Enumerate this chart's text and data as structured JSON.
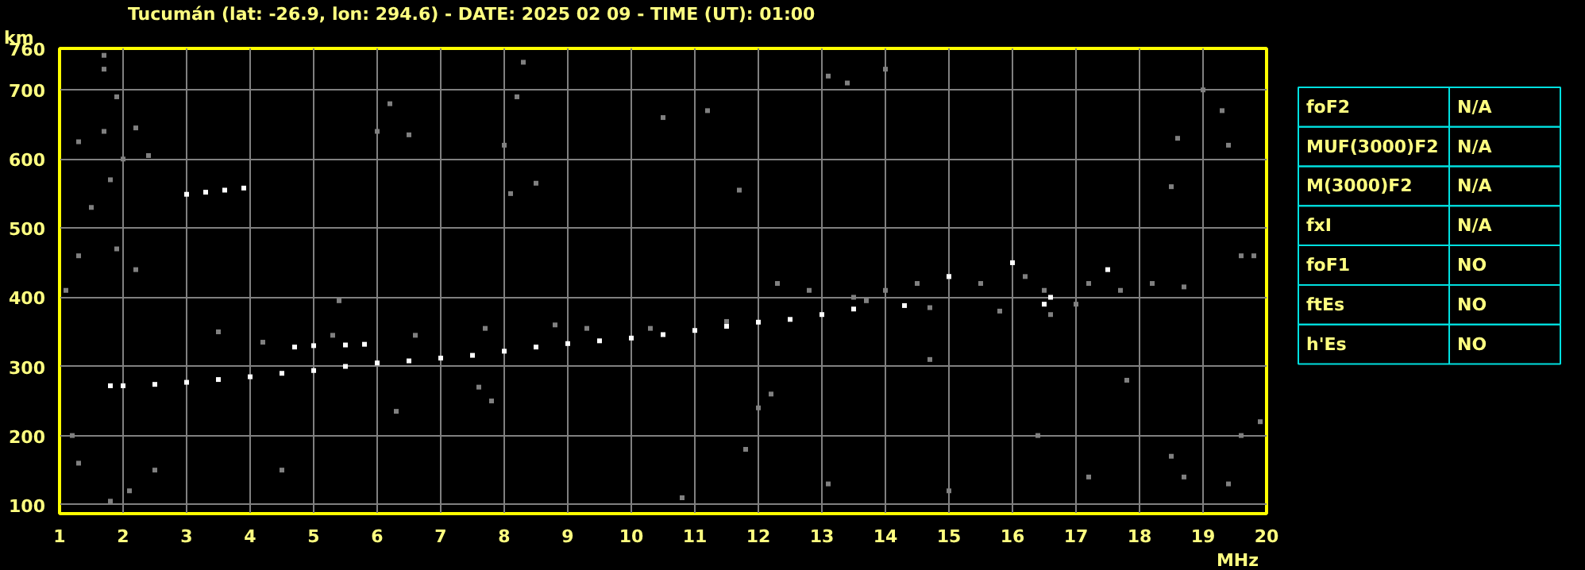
{
  "chart_data": [
    {
      "type": "scatter",
      "title": "Tucumán (lat: -26.9, lon: 294.6) - DATE: 2025 02 09 - TIME (UT): 01:00",
      "xlabel": "MHz",
      "ylabel": "km",
      "xlim": [
        1,
        20
      ],
      "ylim": [
        87,
        760
      ],
      "xticks": [
        1,
        2,
        3,
        4,
        5,
        6,
        7,
        8,
        9,
        10,
        11,
        12,
        13,
        14,
        15,
        16,
        17,
        18,
        19,
        20
      ],
      "yticks": [
        100,
        200,
        300,
        400,
        500,
        600,
        700,
        760
      ],
      "grid": true,
      "marker": "square",
      "series": [
        {
          "color": "#808080",
          "x": [
            1.7,
            1.7,
            1.9,
            1.7,
            2.2,
            1.3,
            2.4,
            2.0,
            1.8,
            1.5,
            1.9,
            2.2,
            1.3,
            1.1,
            5.4,
            6.2,
            6.0,
            6.5,
            8.2,
            8.3,
            8.0,
            8.5,
            8.1,
            10.5,
            11.2,
            11.7,
            13.1,
            13.4,
            14.0,
            18.6,
            18.5,
            19.0,
            19.4,
            19.3,
            19.6,
            19.8,
            3.5,
            4.2,
            5.3,
            6.6,
            7.7,
            8.8,
            9.3,
            10.3,
            11.5,
            12.3,
            12.8,
            13.5,
            14.0,
            14.5,
            15.0,
            15.5,
            16.2,
            16.5,
            17.2,
            17.7,
            18.2,
            18.7,
            15.8,
            16.6,
            13.7,
            14.7,
            17.0,
            1.2,
            1.3,
            1.8,
            2.1,
            2.5,
            12.0,
            12.2,
            11.8,
            13.1,
            15.0,
            17.2,
            18.5,
            18.7,
            19.6,
            19.9,
            19.4,
            6.3,
            7.6,
            7.8,
            4.5,
            10.8,
            16.4,
            14.7,
            17.8
          ],
          "values": [
            750,
            730,
            690,
            640,
            645,
            625,
            605,
            600,
            570,
            530,
            470,
            440,
            460,
            410,
            395,
            680,
            640,
            635,
            690,
            740,
            620,
            565,
            550,
            660,
            670,
            555,
            720,
            710,
            730,
            630,
            560,
            700,
            620,
            670,
            460,
            460,
            350,
            335,
            345,
            345,
            355,
            360,
            355,
            355,
            365,
            420,
            410,
            400,
            410,
            420,
            430,
            420,
            430,
            410,
            420,
            410,
            420,
            415,
            380,
            375,
            395,
            385,
            390,
            200,
            160,
            105,
            120,
            150,
            240,
            260,
            180,
            130,
            120,
            140,
            170,
            140,
            200,
            220,
            130,
            235,
            270,
            250,
            150,
            110,
            200,
            310,
            280
          ]
        },
        {
          "color": "#ffffff",
          "x": [
            1.8,
            2.0,
            2.5,
            3.0,
            3.5,
            4.0,
            4.5,
            5.0,
            5.5,
            6.0,
            6.5,
            7.0,
            7.5,
            8.0,
            8.5,
            9.0,
            9.5,
            10.0,
            10.5,
            11.0,
            11.5,
            12.0,
            12.5,
            13.0,
            13.5,
            4.7,
            5.0,
            5.5,
            5.8,
            3.0,
            3.3,
            3.6,
            3.9,
            14.3,
            15.0,
            16.0,
            16.5,
            17.5,
            16.6
          ],
          "values": [
            272,
            272,
            274,
            277,
            281,
            285,
            290,
            294,
            300,
            305,
            308,
            312,
            316,
            322,
            328,
            333,
            337,
            341,
            346,
            352,
            358,
            364,
            368,
            375,
            383,
            328,
            330,
            331,
            332,
            549,
            552,
            555,
            558,
            388,
            430,
            450,
            390,
            440,
            400
          ]
        }
      ]
    },
    {
      "type": "other",
      "categories": [
        "foF2",
        "MUF(3000)F2",
        "M(3000)F2",
        "fxI",
        "foF1",
        "ftEs",
        "h'Es"
      ],
      "value_labels": [
        "N/A",
        "N/A",
        "N/A",
        "N/A",
        "NO",
        "NO",
        "NO"
      ]
    }
  ]
}
